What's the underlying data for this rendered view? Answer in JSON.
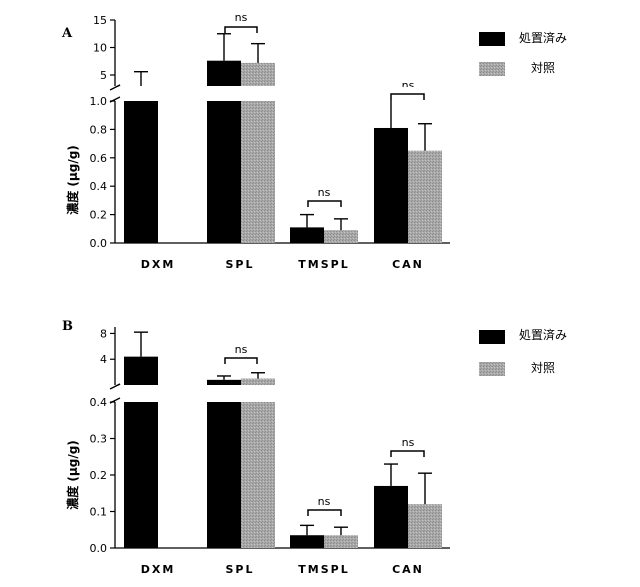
{
  "colors": {
    "treated": "#000000",
    "control": "#a8a8a8",
    "axis": "#000000"
  },
  "chart_data": [
    {
      "type": "bar",
      "panel_label": "A",
      "ylabel": "濃度 (",
      "ylabel_unit": "g/g)",
      "categories": [
        "DXM",
        "SPL",
        "TMSPL",
        "CAN"
      ],
      "legend": {
        "placement": "top-right",
        "entries": [
          "処置済み",
          "対照"
        ]
      },
      "series": [
        {
          "name": "処置済み",
          "values": [
            3.0,
            7.6,
            0.11,
            0.81
          ],
          "errors": [
            2.6,
            4.9,
            0.09,
            0.2
          ]
        },
        {
          "name": "対照",
          "values": [
            null,
            7.2,
            0.09,
            0.65
          ],
          "errors": [
            null,
            3.5,
            0.08,
            0.19
          ]
        }
      ],
      "y_break": true,
      "lower_axis": {
        "ylim": [
          0,
          1.0
        ],
        "ticks": [
          "0.0",
          "0.2",
          "0.4",
          "0.6",
          "0.8",
          "1.0"
        ]
      },
      "upper_axis": {
        "ylim": [
          3,
          15
        ],
        "ticks": [
          "5",
          "10",
          "15"
        ]
      },
      "annotations": [
        "ns",
        "ns",
        "ns"
      ],
      "grid": false
    },
    {
      "type": "bar",
      "panel_label": "B",
      "ylabel": "濃度 (",
      "ylabel_unit": "g/g)",
      "categories": [
        "DXM",
        "SPL",
        "TMSPL",
        "CAN"
      ],
      "legend": {
        "placement": "top-right",
        "entries": [
          "処置済み",
          "対照"
        ]
      },
      "series": [
        {
          "name": "処置済み",
          "values": [
            4.4,
            0.8,
            0.035,
            0.17
          ],
          "errors": [
            3.8,
            0.6,
            0.027,
            0.06
          ]
        },
        {
          "name": "対照",
          "values": [
            null,
            1.0,
            0.035,
            0.12
          ],
          "errors": [
            null,
            0.9,
            0.022,
            0.085
          ]
        }
      ],
      "y_break": true,
      "lower_axis": {
        "ylim": [
          0,
          0.4
        ],
        "ticks": [
          "0.0",
          "0.1",
          "0.2",
          "0.3",
          "0.4"
        ]
      },
      "upper_axis": {
        "ylim": [
          0,
          9
        ],
        "ticks": [
          "4",
          "8"
        ]
      },
      "annotations": [
        "ns",
        "ns",
        "ns"
      ],
      "grid": false
    }
  ]
}
